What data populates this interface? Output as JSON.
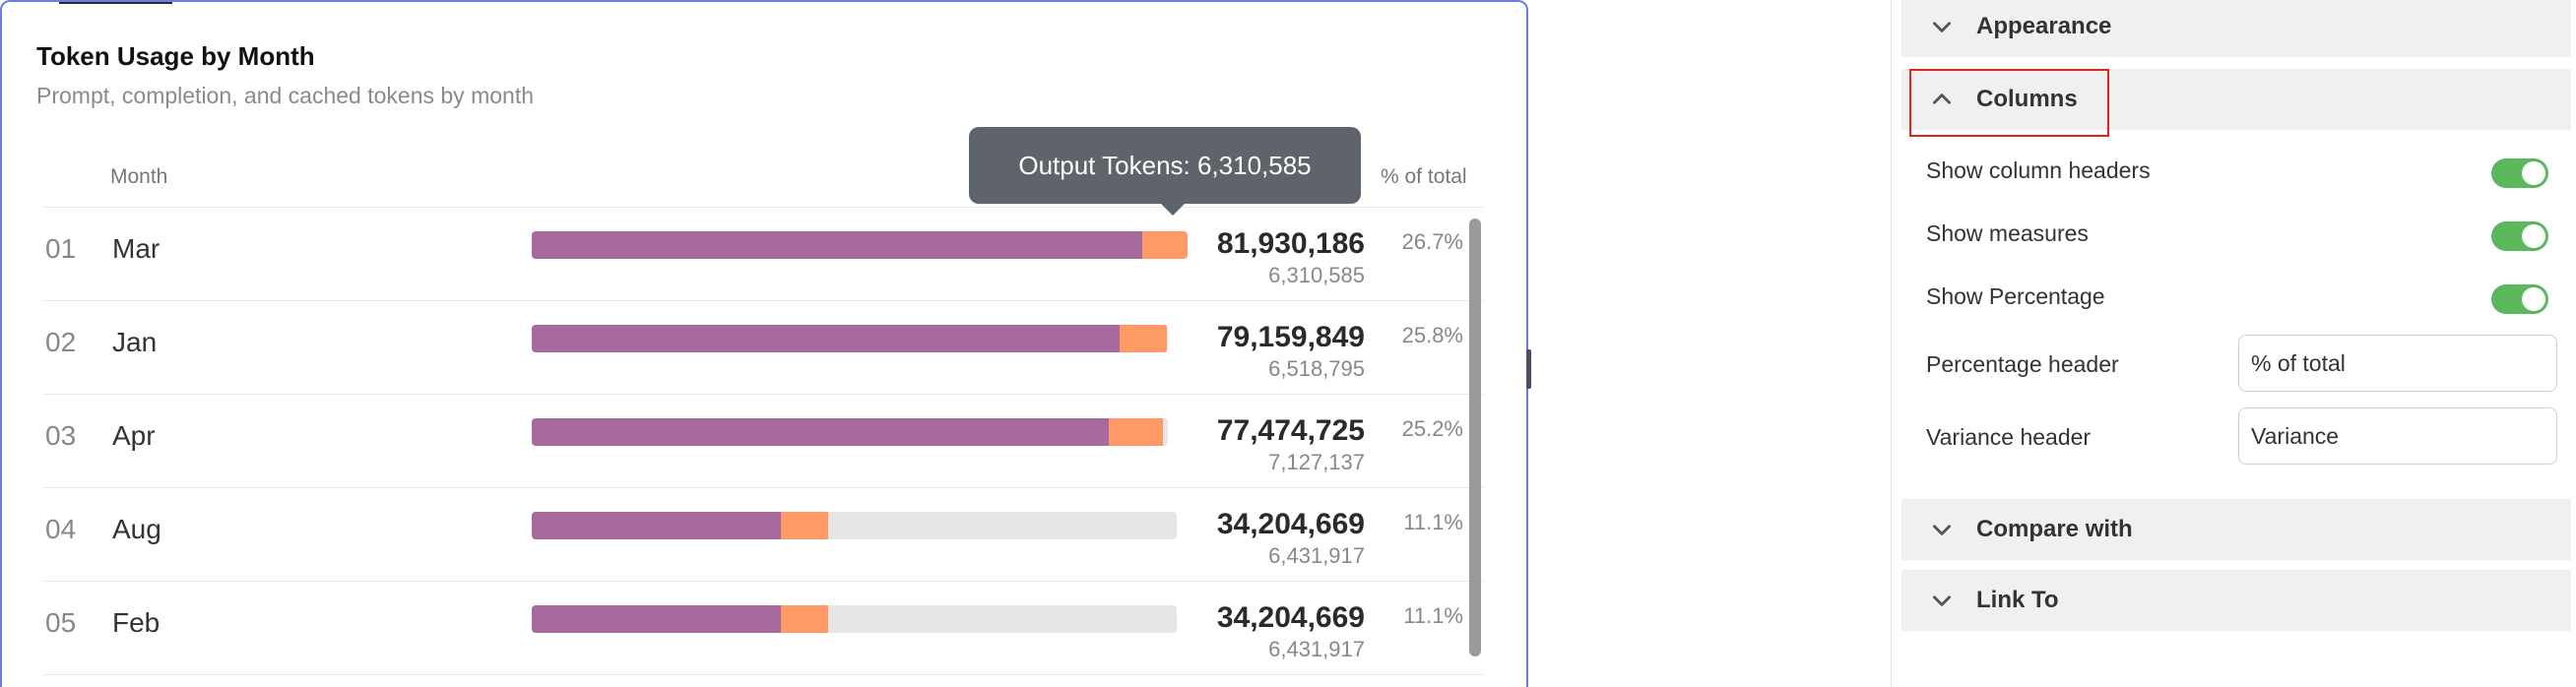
{
  "chart": {
    "title": "Token Usage by Month",
    "subtitle": "Prompt, completion, and cached tokens by month",
    "column_month": "Month",
    "column_pct": "% of total",
    "tooltip": "Output Tokens: 6,310,585",
    "colors": {
      "prompt": "#a66a9c",
      "output": "#ff9966",
      "track": "#e6e6e6"
    },
    "rows": [
      {
        "index": "01",
        "month": "Mar",
        "value": "81,930,186",
        "sub": "6,310,585",
        "pct": "26.7%"
      },
      {
        "index": "02",
        "month": "Jan",
        "value": "79,159,849",
        "sub": "6,518,795",
        "pct": "25.8%"
      },
      {
        "index": "03",
        "month": "Apr",
        "value": "77,474,725",
        "sub": "7,127,137",
        "pct": "25.2%"
      },
      {
        "index": "04",
        "month": "Aug",
        "value": "34,204,669",
        "sub": "6,431,917",
        "pct": "11.1%"
      },
      {
        "index": "05",
        "month": "Feb",
        "value": "34,204,669",
        "sub": "6,431,917",
        "pct": "11.1%"
      }
    ]
  },
  "chart_data": {
    "type": "bar",
    "title": "Token Usage by Month",
    "subtitle": "Prompt, completion, and cached tokens by month",
    "categories": [
      "Mar",
      "Jan",
      "Apr",
      "Aug",
      "Feb"
    ],
    "series": [
      {
        "name": "Output Tokens",
        "values": [
          6310585,
          6518795,
          7127137,
          6431917,
          6431917
        ]
      }
    ],
    "totals": [
      81930186,
      79159849,
      77474725,
      34204669,
      34204669
    ],
    "percent_of_total": [
      26.7,
      25.8,
      25.2,
      11.1,
      11.1
    ],
    "stacked": true
  },
  "panel": {
    "sections": {
      "appearance": "Appearance",
      "columns": "Columns",
      "compare_with": "Compare with",
      "link_to": "Link To"
    },
    "settings": {
      "show_column_headers": "Show column headers",
      "show_measures": "Show measures",
      "show_percentage": "Show Percentage",
      "percentage_header_label": "Percentage header",
      "percentage_header_value": "% of total",
      "variance_header_label": "Variance header",
      "variance_header_value": "Variance"
    },
    "toggles": {
      "show_column_headers": true,
      "show_measures": true,
      "show_percentage": true
    },
    "accent": "#5cb85c"
  }
}
